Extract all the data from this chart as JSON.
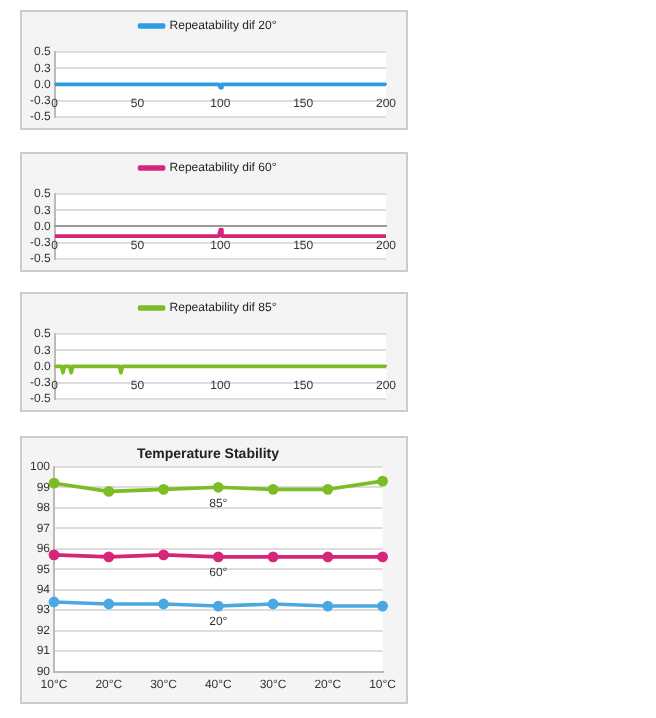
{
  "chart_data": [
    {
      "type": "line",
      "x": [
        0,
        99,
        100,
        101,
        200
      ],
      "series": [
        {
          "name": "Repeatability dif 20°",
          "color": "#2f9be0",
          "values": [
            0,
            0,
            -0.05,
            0,
            0
          ]
        }
      ],
      "xlim": [
        0,
        200
      ],
      "xticks": [
        0,
        50,
        100,
        150,
        200
      ],
      "ylim": [
        -0.5,
        0.5
      ],
      "yticks": [
        {
          "value": -0.5,
          "label": "-0.5"
        },
        {
          "value": -0.25,
          "label": "-0.3"
        },
        {
          "value": 0,
          "label": "0.0"
        },
        {
          "value": 0.25,
          "label": "0.3"
        },
        {
          "value": 0.5,
          "label": "0.5"
        }
      ],
      "legend": "top",
      "grid": "y",
      "marker": "none"
    },
    {
      "type": "line",
      "x": [
        0,
        99,
        100,
        101,
        200
      ],
      "series": [
        {
          "name": "Repeatability dif 60°",
          "color": "#d6267a",
          "values": [
            -0.15,
            -0.15,
            -0.05,
            -0.15,
            -0.15
          ]
        }
      ],
      "xlim": [
        0,
        200
      ],
      "xticks": [
        0,
        50,
        100,
        150,
        200
      ],
      "ylim": [
        -0.5,
        0.5
      ],
      "yticks": [
        {
          "value": -0.5,
          "label": "-0.5"
        },
        {
          "value": -0.25,
          "label": "-0.3"
        },
        {
          "value": 0,
          "label": "0.0"
        },
        {
          "value": 0.25,
          "label": "0.3"
        },
        {
          "value": 0.5,
          "label": "0.5"
        }
      ],
      "legend": "top",
      "grid": "y",
      "marker": "none"
    },
    {
      "type": "line",
      "x": [
        0,
        4,
        5,
        6,
        9,
        10,
        11,
        39,
        40,
        41,
        200
      ],
      "series": [
        {
          "name": "Repeatability dif 85°",
          "color": "#7cbd27",
          "values": [
            0,
            0,
            -0.1,
            0,
            0,
            -0.1,
            0,
            0,
            -0.1,
            0,
            0
          ]
        }
      ],
      "xlim": [
        0,
        200
      ],
      "xticks": [
        0,
        50,
        100,
        150,
        200
      ],
      "ylim": [
        -0.5,
        0.5
      ],
      "yticks": [
        {
          "value": -0.5,
          "label": "-0.5"
        },
        {
          "value": -0.25,
          "label": "-0.3"
        },
        {
          "value": 0,
          "label": "0.0"
        },
        {
          "value": 0.25,
          "label": "0.3"
        },
        {
          "value": 0.5,
          "label": "0.5"
        }
      ],
      "legend": "top",
      "grid": "y",
      "marker": "none"
    },
    {
      "type": "line",
      "title": "Temperature Stability",
      "categories": [
        "10°C",
        "20°C",
        "30°C",
        "40°C",
        "30°C",
        "20°C",
        "10°C"
      ],
      "series": [
        {
          "name": "85°",
          "color": "#7cbd27",
          "values": [
            99.2,
            98.8,
            98.9,
            99.0,
            98.9,
            98.9,
            99.3
          ]
        },
        {
          "name": "60°",
          "color": "#d6267a",
          "values": [
            95.7,
            95.6,
            95.7,
            95.6,
            95.6,
            95.6,
            95.6
          ]
        },
        {
          "name": "20°",
          "color": "#4aa8e0",
          "values": [
            93.4,
            93.3,
            93.3,
            93.2,
            93.3,
            93.2,
            93.2
          ]
        }
      ],
      "ylim": [
        90,
        100
      ],
      "yticks": [
        90,
        91,
        92,
        93,
        94,
        95,
        96,
        97,
        98,
        99,
        100
      ],
      "legend": false,
      "grid": "y",
      "marker": "circle"
    }
  ]
}
